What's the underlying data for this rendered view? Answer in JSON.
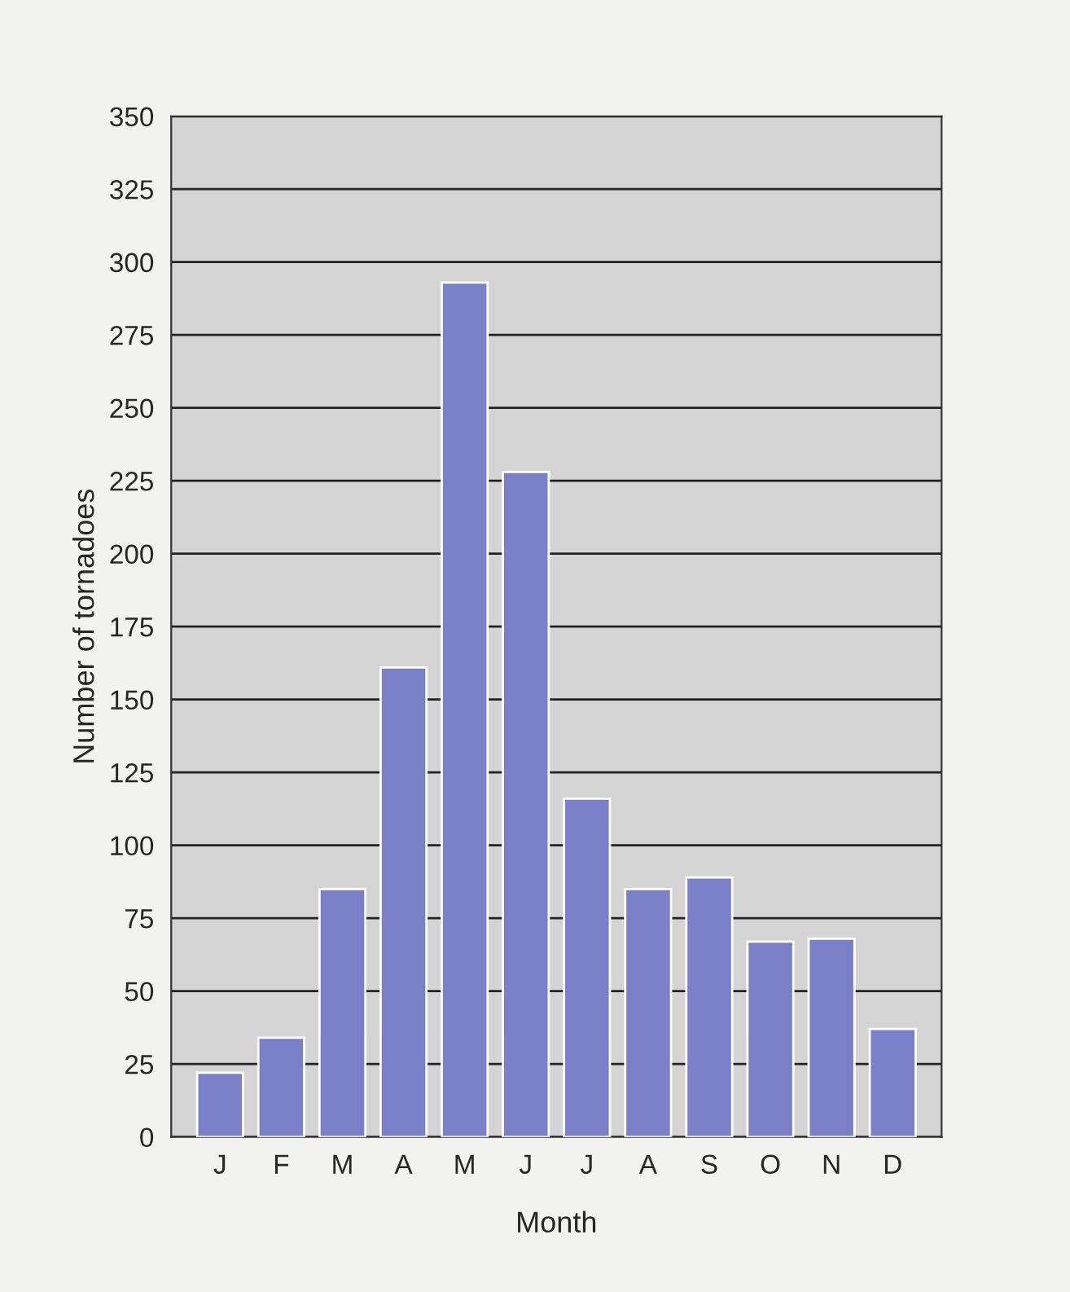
{
  "chart_data": {
    "type": "bar",
    "xlabel": "Month",
    "ylabel": "Number of tornadoes",
    "categories": [
      "J",
      "F",
      "M",
      "A",
      "M",
      "J",
      "J",
      "A",
      "S",
      "O",
      "N",
      "D"
    ],
    "series": [
      {
        "color": "#7a80c8",
        "values": [
          22,
          34,
          85,
          161,
          293,
          228,
          116,
          85,
          89,
          67,
          68,
          37
        ]
      }
    ],
    "ylim": [
      0,
      350
    ],
    "yticks": [
      0,
      25,
      50,
      75,
      100,
      125,
      150,
      175,
      200,
      225,
      250,
      275,
      300,
      325,
      350
    ],
    "grid": "y"
  }
}
